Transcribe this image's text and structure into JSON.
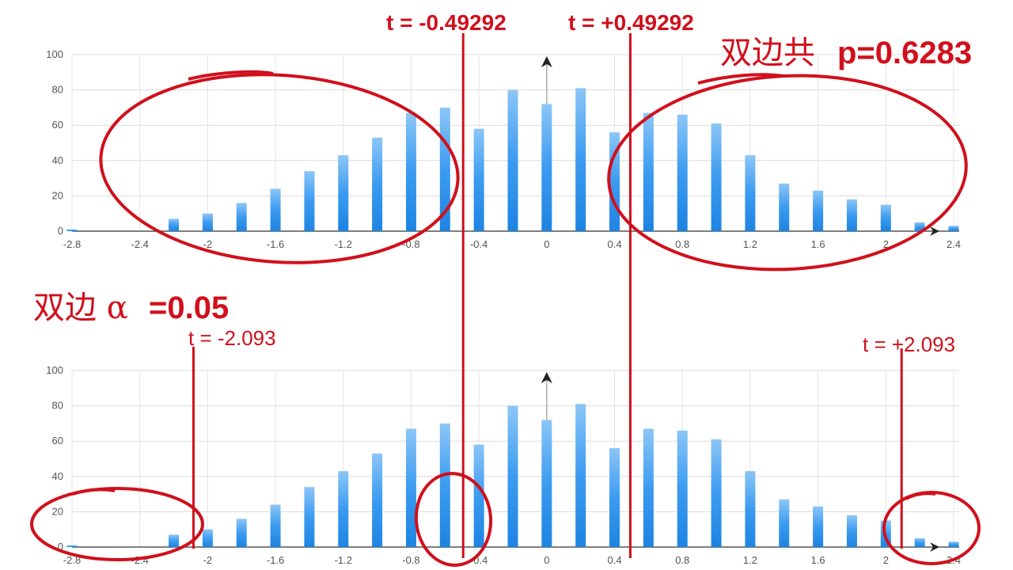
{
  "annotations": {
    "t_neg_small": "t = -0.49292",
    "t_pos_small": "t = +0.49292",
    "p_label_cn": "双边共",
    "p_label_value": "p=0.6283",
    "alpha_label_cn": "双边 α",
    "alpha_label_value": "=0.05",
    "t_neg_crit": "t = -2.093",
    "t_pos_crit": "t = +2.093"
  },
  "colors": {
    "bar": "#2b8ee8",
    "bar_light": "#8cc6f7",
    "annotation_red": "#d0101c",
    "grid": "#d9d9d9",
    "axis": "#333333"
  },
  "chart_data": [
    {
      "type": "bar",
      "title": "",
      "xlabel": "",
      "ylabel": "",
      "xlim": [
        -2.8,
        2.4
      ],
      "ylim": [
        0,
        100
      ],
      "grid": true,
      "x_ticks": [
        -2.8,
        -2.4,
        -2,
        -1.6,
        -1.2,
        -0.8,
        -0.4,
        0,
        0.4,
        0.8,
        1.2,
        1.6,
        2,
        2.4
      ],
      "x_tick_labels": [
        "-2.8",
        "-2.4",
        "-2",
        "-1.6",
        "-1.2",
        "-0.8",
        "-0.4",
        "0",
        "0.4",
        "0.8",
        "1.2",
        "1.6",
        "2",
        "2.4"
      ],
      "y_ticks": [
        0,
        20,
        40,
        60,
        80,
        100
      ],
      "y_tick_labels": [
        "0",
        "20",
        "40",
        "60",
        "80",
        "100"
      ],
      "x": [
        -2.8,
        -2.2,
        -2.0,
        -1.8,
        -1.6,
        -1.4,
        -1.2,
        -1.0,
        -0.8,
        -0.6,
        -0.4,
        -0.2,
        0.0,
        0.2,
        0.4,
        0.6,
        0.8,
        1.0,
        1.2,
        1.4,
        1.6,
        1.8,
        2.0,
        2.2,
        2.4
      ],
      "values": [
        1,
        7,
        10,
        16,
        24,
        34,
        43,
        53,
        67,
        70,
        58,
        80,
        72,
        81,
        56,
        67,
        66,
        61,
        43,
        27,
        23,
        18,
        15,
        5,
        3
      ],
      "reference_lines_t": [
        -0.49292,
        0.49292
      ]
    },
    {
      "type": "bar",
      "title": "",
      "xlabel": "",
      "ylabel": "",
      "xlim": [
        -2.8,
        2.4
      ],
      "ylim": [
        0,
        100
      ],
      "grid": true,
      "x_ticks": [
        -2.8,
        -2.4,
        -2,
        -1.6,
        -1.2,
        -0.8,
        -0.4,
        0,
        0.4,
        0.8,
        1.2,
        1.6,
        2,
        2.4
      ],
      "x_tick_labels": [
        "-2.8",
        "-2.4",
        "-2",
        "-1.6",
        "-1.2",
        "-0.8",
        "-0.4",
        "0",
        "0.4",
        "0.8",
        "1.2",
        "1.6",
        "2",
        "2.4"
      ],
      "y_ticks": [
        0,
        20,
        40,
        60,
        80,
        100
      ],
      "y_tick_labels": [
        "0",
        "20",
        "40",
        "60",
        "80",
        "100"
      ],
      "x": [
        -2.8,
        -2.2,
        -2.0,
        -1.8,
        -1.6,
        -1.4,
        -1.2,
        -1.0,
        -0.8,
        -0.6,
        -0.4,
        -0.2,
        0.0,
        0.2,
        0.4,
        0.6,
        0.8,
        1.0,
        1.2,
        1.4,
        1.6,
        1.8,
        2.0,
        2.2,
        2.4
      ],
      "values": [
        1,
        7,
        10,
        16,
        24,
        34,
        43,
        53,
        67,
        70,
        58,
        80,
        72,
        81,
        56,
        67,
        66,
        61,
        43,
        27,
        23,
        18,
        15,
        5,
        3
      ],
      "reference_lines_t": [
        -2.093,
        2.093
      ]
    }
  ]
}
